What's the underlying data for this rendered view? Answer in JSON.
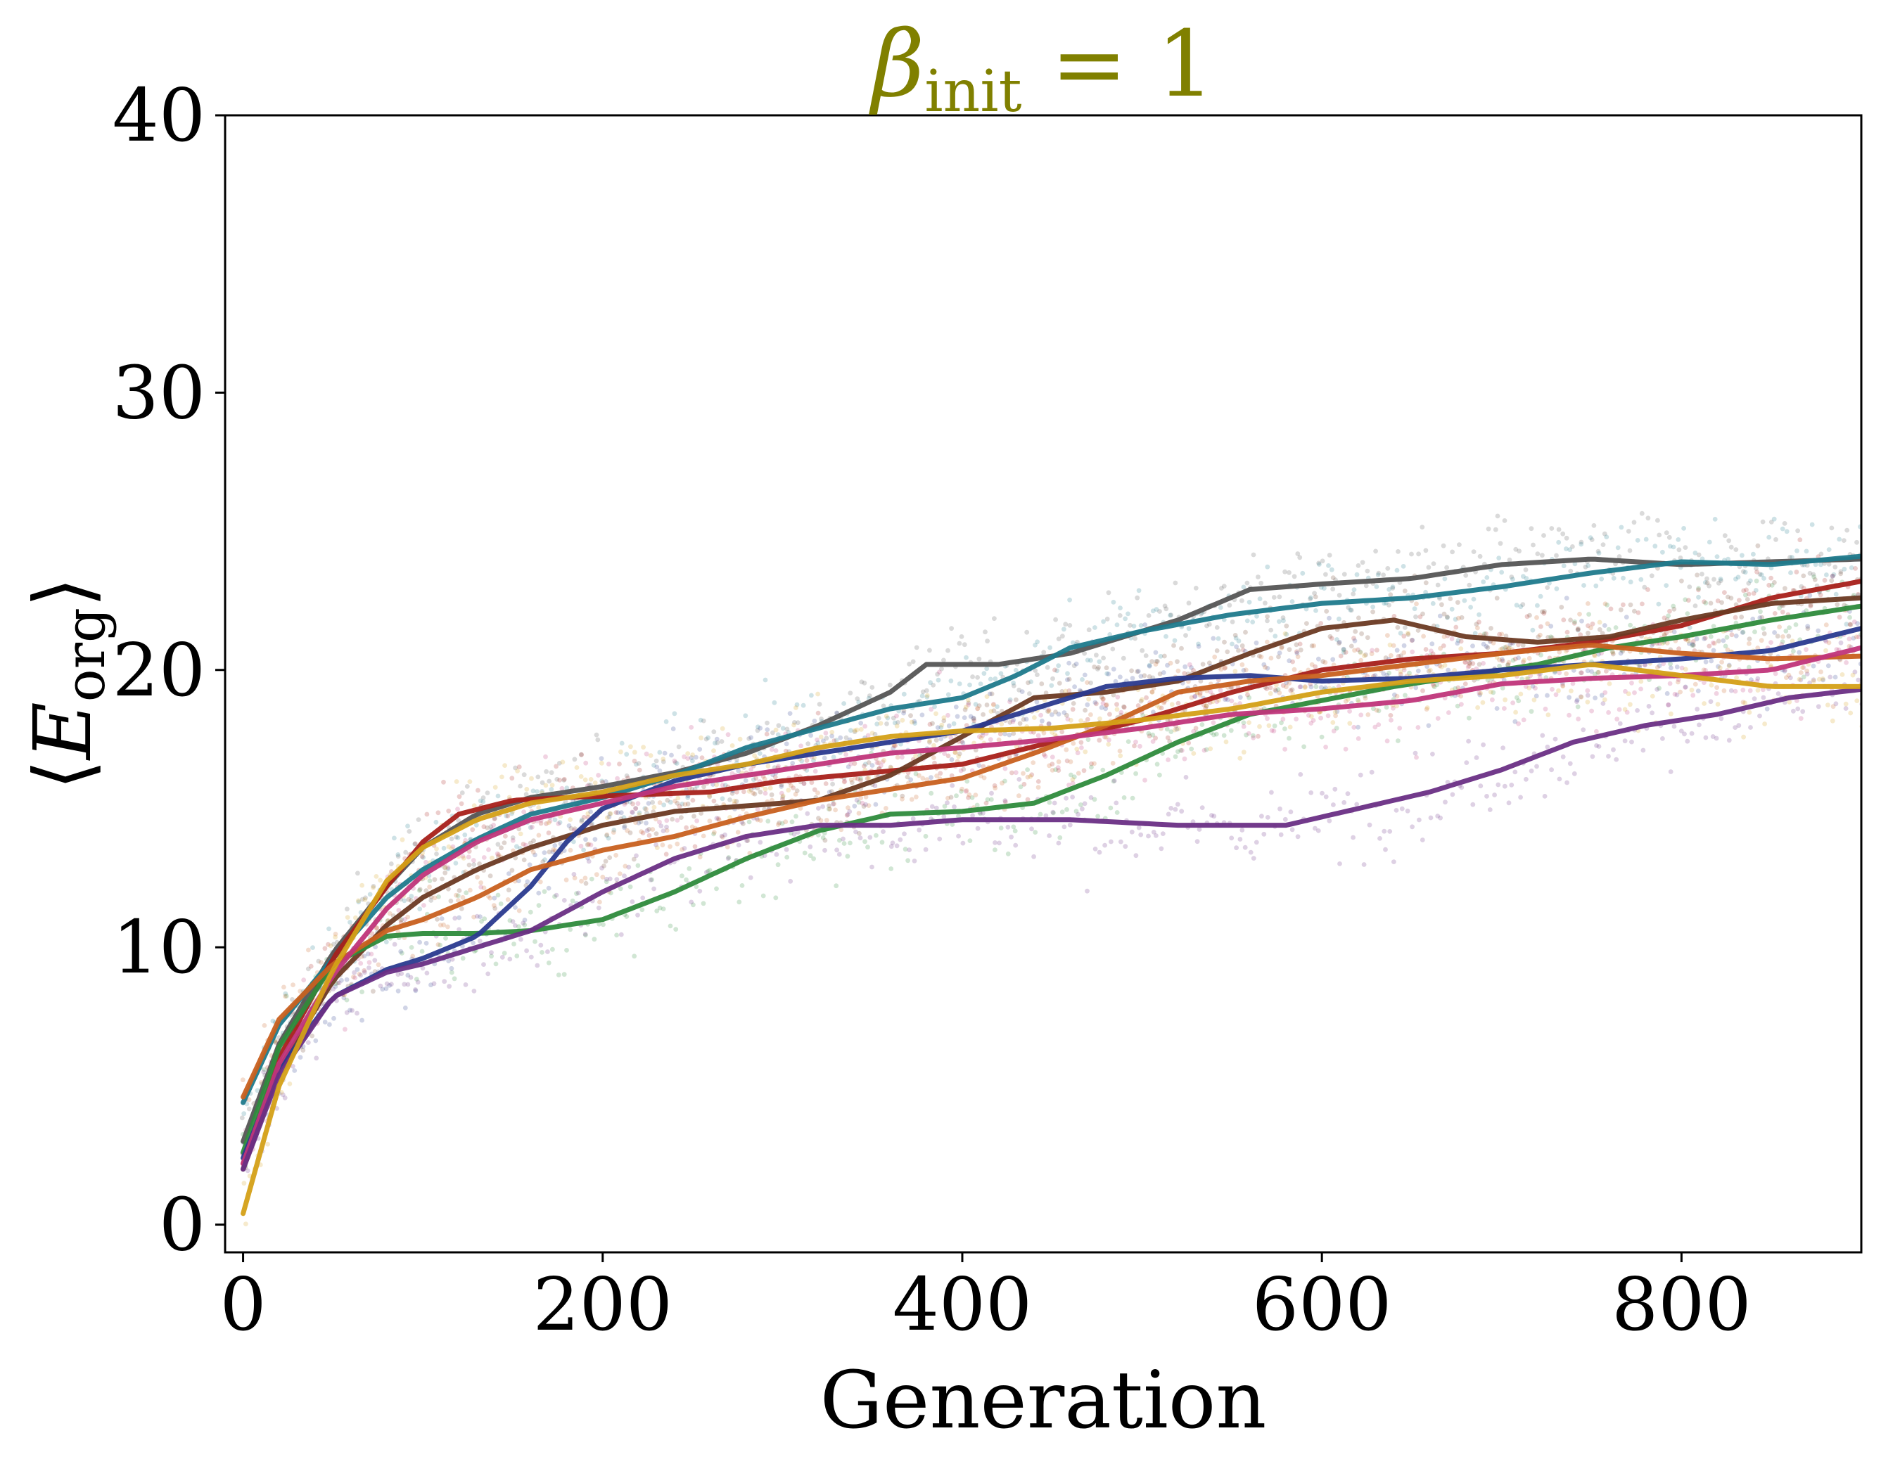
{
  "chart_data": {
    "type": "line",
    "title": {
      "symbol": "β",
      "subscript": "init",
      "rest": " = 1",
      "color": "#808000"
    },
    "xlabel": "Generation",
    "ylabel": {
      "open": "⟨",
      "symbol": "E",
      "subscript": "org",
      "close": "⟩"
    },
    "xlim": [
      -10,
      900
    ],
    "ylim": [
      -1,
      40
    ],
    "xticks": [
      0,
      200,
      400,
      600,
      800
    ],
    "yticks": [
      0,
      10,
      20,
      30,
      40
    ],
    "grid": false,
    "legend": "none",
    "scatter_overlay": "faint per-run scatter points behind each smoothed line",
    "series": [
      {
        "color": "#555555",
        "points": [
          [
            0,
            3.0
          ],
          [
            20,
            6.5
          ],
          [
            50,
            9.8
          ],
          [
            80,
            12.2
          ],
          [
            100,
            13.6
          ],
          [
            130,
            14.8
          ],
          [
            160,
            15.4
          ],
          [
            200,
            15.8
          ],
          [
            240,
            16.3
          ],
          [
            280,
            17.0
          ],
          [
            320,
            18.0
          ],
          [
            360,
            19.2
          ],
          [
            380,
            20.2
          ],
          [
            420,
            20.2
          ],
          [
            460,
            20.6
          ],
          [
            520,
            21.8
          ],
          [
            560,
            22.9
          ],
          [
            600,
            23.1
          ],
          [
            650,
            23.3
          ],
          [
            700,
            23.8
          ],
          [
            750,
            24.0
          ],
          [
            800,
            23.8
          ],
          [
            850,
            23.9
          ],
          [
            900,
            24.0
          ]
        ]
      },
      {
        "color": "#1f7a8c",
        "points": [
          [
            0,
            4.4
          ],
          [
            20,
            7.2
          ],
          [
            50,
            9.6
          ],
          [
            80,
            11.8
          ],
          [
            100,
            12.8
          ],
          [
            130,
            13.9
          ],
          [
            160,
            14.8
          ],
          [
            200,
            15.4
          ],
          [
            240,
            16.2
          ],
          [
            280,
            17.2
          ],
          [
            320,
            17.9
          ],
          [
            360,
            18.6
          ],
          [
            400,
            19.0
          ],
          [
            430,
            19.8
          ],
          [
            460,
            20.8
          ],
          [
            500,
            21.4
          ],
          [
            550,
            22.0
          ],
          [
            600,
            22.4
          ],
          [
            650,
            22.6
          ],
          [
            700,
            23.0
          ],
          [
            750,
            23.5
          ],
          [
            800,
            23.9
          ],
          [
            850,
            23.8
          ],
          [
            900,
            24.1
          ]
        ]
      },
      {
        "color": "#a8201a",
        "points": [
          [
            0,
            2.2
          ],
          [
            20,
            6.0
          ],
          [
            50,
            9.6
          ],
          [
            80,
            12.2
          ],
          [
            100,
            13.8
          ],
          [
            120,
            14.8
          ],
          [
            150,
            15.3
          ],
          [
            180,
            15.4
          ],
          [
            220,
            15.5
          ],
          [
            260,
            15.6
          ],
          [
            300,
            16.0
          ],
          [
            350,
            16.3
          ],
          [
            400,
            16.6
          ],
          [
            450,
            17.4
          ],
          [
            500,
            18.2
          ],
          [
            550,
            19.2
          ],
          [
            600,
            20.0
          ],
          [
            650,
            20.4
          ],
          [
            700,
            20.6
          ],
          [
            750,
            21.0
          ],
          [
            800,
            21.6
          ],
          [
            850,
            22.6
          ],
          [
            900,
            23.2
          ]
        ]
      },
      {
        "color": "#6b3a23",
        "points": [
          [
            0,
            2.0
          ],
          [
            20,
            5.6
          ],
          [
            50,
            8.8
          ],
          [
            80,
            10.8
          ],
          [
            100,
            11.8
          ],
          [
            130,
            12.8
          ],
          [
            160,
            13.6
          ],
          [
            200,
            14.4
          ],
          [
            240,
            14.9
          ],
          [
            280,
            15.1
          ],
          [
            320,
            15.3
          ],
          [
            360,
            16.2
          ],
          [
            400,
            17.6
          ],
          [
            440,
            19.0
          ],
          [
            480,
            19.2
          ],
          [
            520,
            19.6
          ],
          [
            560,
            20.6
          ],
          [
            600,
            21.5
          ],
          [
            640,
            21.8
          ],
          [
            680,
            21.2
          ],
          [
            720,
            21.0
          ],
          [
            760,
            21.2
          ],
          [
            800,
            21.8
          ],
          [
            850,
            22.4
          ],
          [
            900,
            22.6
          ]
        ]
      },
      {
        "color": "#2e8b3c",
        "points": [
          [
            0,
            2.6
          ],
          [
            20,
            6.4
          ],
          [
            50,
            9.4
          ],
          [
            80,
            10.4
          ],
          [
            100,
            10.5
          ],
          [
            130,
            10.5
          ],
          [
            160,
            10.6
          ],
          [
            200,
            11.0
          ],
          [
            240,
            12.0
          ],
          [
            280,
            13.2
          ],
          [
            320,
            14.2
          ],
          [
            360,
            14.8
          ],
          [
            400,
            14.9
          ],
          [
            440,
            15.2
          ],
          [
            480,
            16.2
          ],
          [
            520,
            17.4
          ],
          [
            560,
            18.4
          ],
          [
            600,
            18.9
          ],
          [
            640,
            19.4
          ],
          [
            680,
            19.8
          ],
          [
            720,
            20.2
          ],
          [
            760,
            20.8
          ],
          [
            800,
            21.2
          ],
          [
            850,
            21.8
          ],
          [
            900,
            22.3
          ]
        ]
      },
      {
        "color": "#2a3a8f",
        "points": [
          [
            0,
            2.4
          ],
          [
            20,
            5.6
          ],
          [
            50,
            8.2
          ],
          [
            80,
            9.2
          ],
          [
            100,
            9.6
          ],
          [
            130,
            10.4
          ],
          [
            160,
            12.2
          ],
          [
            180,
            13.8
          ],
          [
            200,
            15.0
          ],
          [
            240,
            16.0
          ],
          [
            280,
            16.6
          ],
          [
            320,
            17.0
          ],
          [
            360,
            17.4
          ],
          [
            400,
            17.8
          ],
          [
            440,
            18.6
          ],
          [
            480,
            19.4
          ],
          [
            520,
            19.7
          ],
          [
            560,
            19.8
          ],
          [
            600,
            19.6
          ],
          [
            650,
            19.7
          ],
          [
            700,
            20.0
          ],
          [
            750,
            20.2
          ],
          [
            800,
            20.4
          ],
          [
            850,
            20.7
          ],
          [
            900,
            21.5
          ]
        ]
      },
      {
        "color": "#c8601f",
        "points": [
          [
            0,
            4.6
          ],
          [
            20,
            7.4
          ],
          [
            50,
            9.4
          ],
          [
            80,
            10.6
          ],
          [
            100,
            11.0
          ],
          [
            130,
            11.8
          ],
          [
            160,
            12.8
          ],
          [
            200,
            13.5
          ],
          [
            240,
            14.0
          ],
          [
            280,
            14.7
          ],
          [
            320,
            15.3
          ],
          [
            360,
            15.7
          ],
          [
            400,
            16.1
          ],
          [
            440,
            17.0
          ],
          [
            480,
            18.0
          ],
          [
            520,
            19.2
          ],
          [
            560,
            19.6
          ],
          [
            600,
            19.8
          ],
          [
            650,
            20.2
          ],
          [
            700,
            20.6
          ],
          [
            750,
            20.9
          ],
          [
            800,
            20.6
          ],
          [
            850,
            20.4
          ],
          [
            900,
            20.5
          ]
        ]
      },
      {
        "color": "#c0357a",
        "points": [
          [
            0,
            2.2
          ],
          [
            20,
            5.8
          ],
          [
            50,
            9.0
          ],
          [
            80,
            11.4
          ],
          [
            100,
            12.6
          ],
          [
            130,
            13.8
          ],
          [
            160,
            14.6
          ],
          [
            200,
            15.2
          ],
          [
            240,
            15.8
          ],
          [
            280,
            16.2
          ],
          [
            320,
            16.6
          ],
          [
            360,
            17.0
          ],
          [
            400,
            17.2
          ],
          [
            450,
            17.5
          ],
          [
            500,
            17.9
          ],
          [
            550,
            18.4
          ],
          [
            600,
            18.6
          ],
          [
            650,
            18.9
          ],
          [
            700,
            19.5
          ],
          [
            750,
            19.7
          ],
          [
            800,
            19.8
          ],
          [
            850,
            20.0
          ],
          [
            900,
            20.8
          ]
        ]
      },
      {
        "color": "#6a2f85",
        "points": [
          [
            0,
            2.0
          ],
          [
            20,
            5.4
          ],
          [
            50,
            8.2
          ],
          [
            80,
            9.1
          ],
          [
            100,
            9.4
          ],
          [
            130,
            10.0
          ],
          [
            160,
            10.6
          ],
          [
            200,
            12.0
          ],
          [
            240,
            13.2
          ],
          [
            280,
            14.0
          ],
          [
            320,
            14.4
          ],
          [
            360,
            14.4
          ],
          [
            400,
            14.6
          ],
          [
            460,
            14.6
          ],
          [
            520,
            14.4
          ],
          [
            580,
            14.4
          ],
          [
            620,
            15.0
          ],
          [
            660,
            15.6
          ],
          [
            700,
            16.4
          ],
          [
            740,
            17.4
          ],
          [
            780,
            18.0
          ],
          [
            820,
            18.4
          ],
          [
            860,
            19.0
          ],
          [
            900,
            19.3
          ]
        ]
      },
      {
        "color": "#d4a017",
        "points": [
          [
            0,
            0.4
          ],
          [
            20,
            5.0
          ],
          [
            50,
            9.2
          ],
          [
            80,
            12.4
          ],
          [
            100,
            13.6
          ],
          [
            130,
            14.6
          ],
          [
            160,
            15.2
          ],
          [
            200,
            15.6
          ],
          [
            240,
            16.2
          ],
          [
            280,
            16.6
          ],
          [
            320,
            17.2
          ],
          [
            360,
            17.6
          ],
          [
            400,
            17.8
          ],
          [
            450,
            17.9
          ],
          [
            500,
            18.2
          ],
          [
            550,
            18.6
          ],
          [
            600,
            19.2
          ],
          [
            650,
            19.6
          ],
          [
            700,
            19.8
          ],
          [
            750,
            20.2
          ],
          [
            800,
            19.8
          ],
          [
            850,
            19.4
          ],
          [
            900,
            19.4
          ]
        ]
      }
    ]
  }
}
